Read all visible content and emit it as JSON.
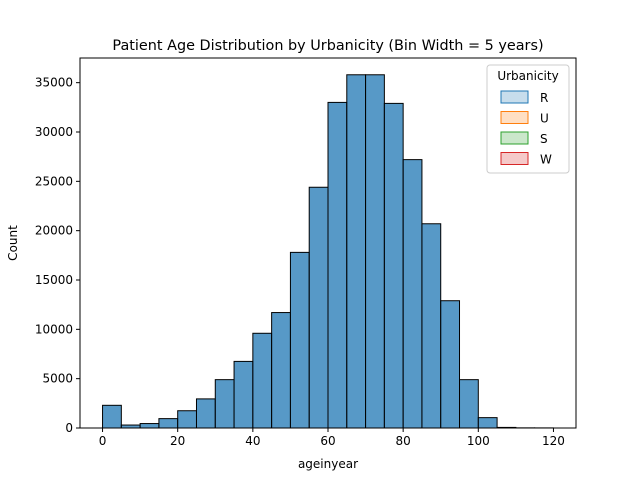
{
  "chart_data": {
    "type": "bar",
    "title": "Patient Age Distribution by Urbanicity (Bin Width = 5 years)",
    "xlabel": "ageinyear",
    "ylabel": "Count",
    "xlim": [
      -6,
      126
    ],
    "ylim": [
      0,
      37500
    ],
    "xticks": [
      0,
      20,
      40,
      60,
      80,
      100,
      120
    ],
    "yticks": [
      0,
      5000,
      10000,
      15000,
      20000,
      25000,
      30000,
      35000
    ],
    "bin_width": 5,
    "bins": [
      {
        "start": 0,
        "value": 2300
      },
      {
        "start": 5,
        "value": 300
      },
      {
        "start": 10,
        "value": 450
      },
      {
        "start": 15,
        "value": 950
      },
      {
        "start": 20,
        "value": 1750
      },
      {
        "start": 25,
        "value": 2950
      },
      {
        "start": 30,
        "value": 4900
      },
      {
        "start": 35,
        "value": 6750
      },
      {
        "start": 40,
        "value": 9600
      },
      {
        "start": 45,
        "value": 11700
      },
      {
        "start": 50,
        "value": 17800
      },
      {
        "start": 55,
        "value": 24400
      },
      {
        "start": 60,
        "value": 33000
      },
      {
        "start": 65,
        "value": 35800
      },
      {
        "start": 70,
        "value": 35800
      },
      {
        "start": 75,
        "value": 32900
      },
      {
        "start": 80,
        "value": 27200
      },
      {
        "start": 85,
        "value": 20700
      },
      {
        "start": 90,
        "value": 12900
      },
      {
        "start": 95,
        "value": 4900
      },
      {
        "start": 100,
        "value": 1050
      },
      {
        "start": 105,
        "value": 60
      },
      {
        "start": 110,
        "value": 15
      },
      {
        "start": 115,
        "value": 10
      }
    ],
    "bar_color": "#1f77b4",
    "legend": {
      "title": "Urbanicity",
      "placement": "top-right",
      "entries": [
        {
          "label": "R",
          "color": "#1f77b4"
        },
        {
          "label": "U",
          "color": "#ff7f0e"
        },
        {
          "label": "S",
          "color": "#2ca02c"
        },
        {
          "label": "W",
          "color": "#d62728"
        }
      ]
    }
  }
}
